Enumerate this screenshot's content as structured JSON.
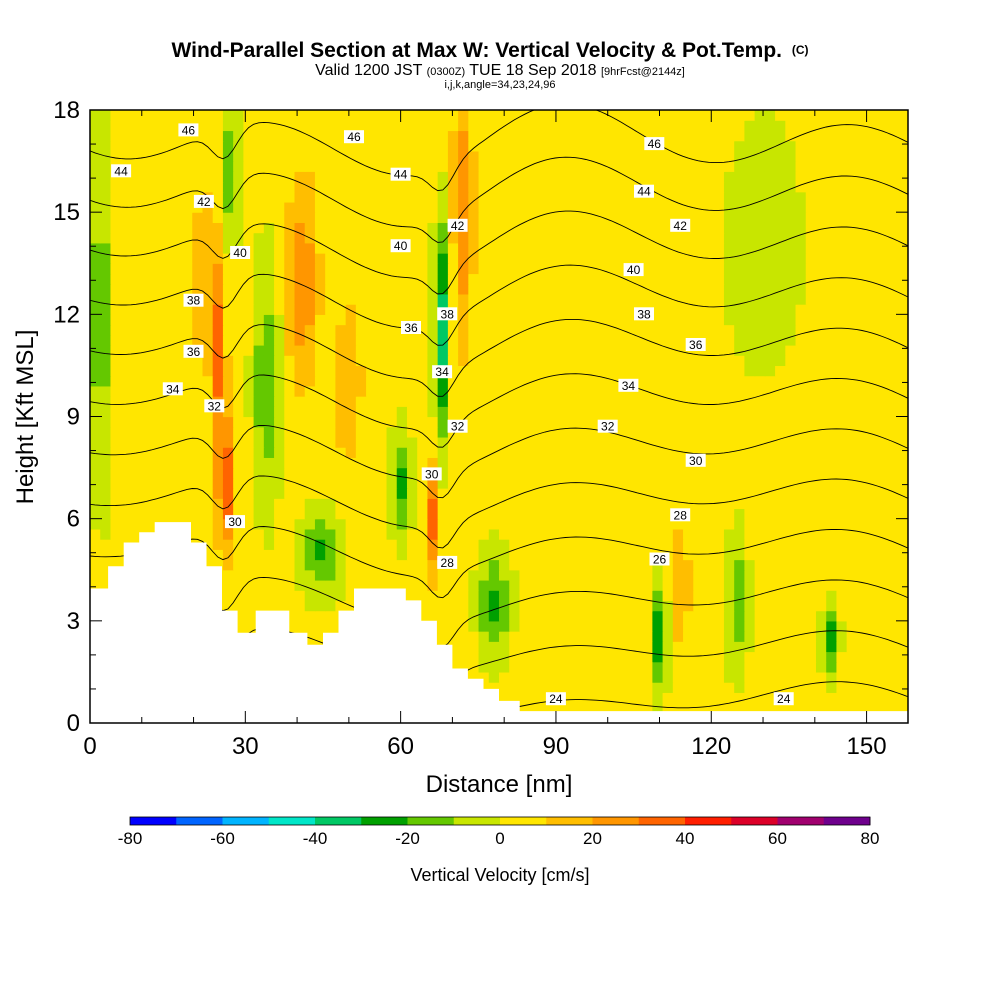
{
  "chart_data": {
    "type": "heatmap",
    "title": "Wind-Parallel Section at Max W: Vertical Velocity & Pot.Temp.",
    "title_suffix": "(C)",
    "subtitle_valid": "Valid 1200 JST",
    "subtitle_zulu": "(0300Z)",
    "subtitle_date": "TUE 18 Sep 2018",
    "subtitle_fcst": "[9hrFcst@2144z]",
    "subtitle_params": "i,j,k,angle=34,23,24,96",
    "xlabel": "Distance [nm]",
    "ylabel": "Height [Kft MSL]",
    "xlim": [
      0,
      158
    ],
    "ylim": [
      0,
      18
    ],
    "x_ticks": [
      "0",
      "30",
      "60",
      "90",
      "120",
      "150"
    ],
    "x_tick_values": [
      0,
      30,
      60,
      90,
      120,
      150
    ],
    "y_ticks": [
      "0",
      "3",
      "6",
      "9",
      "12",
      "15",
      "18"
    ],
    "y_tick_values": [
      0,
      3,
      6,
      9,
      12,
      15,
      18
    ],
    "colorbar": {
      "label": "Vertical Velocity [cm/s]",
      "range": [
        -80,
        80
      ],
      "step": 10,
      "tick_labels": [
        "-80",
        "-60",
        "-40",
        "-20",
        "0",
        "20",
        "40",
        "60",
        "80"
      ],
      "tick_values": [
        -80,
        -60,
        -40,
        -20,
        0,
        20,
        40,
        60,
        80
      ],
      "colors": [
        "#0000ff",
        "#0064ff",
        "#00b4ff",
        "#00e6c8",
        "#00c864",
        "#00a000",
        "#64c800",
        "#c8e600",
        "#ffe600",
        "#ffbe00",
        "#ff9600",
        "#ff6400",
        "#ff1e00",
        "#dc0028",
        "#a0006e",
        "#6e008c"
      ]
    },
    "velocity_features": [
      {
        "x": 2,
        "y": 12,
        "sx": 2,
        "sy": 5,
        "w": -20
      },
      {
        "x": 22,
        "y": 13,
        "sx": 2.5,
        "sy": 3,
        "w": 15
      },
      {
        "x": 26,
        "y": 7,
        "sx": 1.2,
        "sy": 2,
        "w": 45
      },
      {
        "x": 25,
        "y": 11,
        "sx": 1.3,
        "sy": 3,
        "w": 30
      },
      {
        "x": 27,
        "y": 16,
        "sx": 2,
        "sy": 2,
        "w": -20
      },
      {
        "x": 34,
        "y": 10,
        "sx": 2.5,
        "sy": 3.5,
        "w": -20
      },
      {
        "x": 41,
        "y": 13,
        "sx": 3,
        "sy": 3,
        "w": 25
      },
      {
        "x": 45,
        "y": 5,
        "sx": 4,
        "sy": 1.2,
        "w": -25
      },
      {
        "x": 50,
        "y": 10,
        "sx": 4,
        "sy": 4,
        "w": 10
      },
      {
        "x": 60,
        "y": 7,
        "sx": 2,
        "sy": 1.5,
        "w": -25
      },
      {
        "x": 66,
        "y": 6,
        "sx": 1.2,
        "sy": 1.8,
        "w": 30
      },
      {
        "x": 68,
        "y": 11.5,
        "sx": 1.5,
        "sy": 3,
        "w": -40
      },
      {
        "x": 72,
        "y": 15,
        "sx": 2,
        "sy": 4,
        "w": 25
      },
      {
        "x": 78,
        "y": 3.5,
        "sx": 3,
        "sy": 1.5,
        "w": -25
      },
      {
        "x": 90,
        "y": 14,
        "sx": 6,
        "sy": 3,
        "w": 5
      },
      {
        "x": 110,
        "y": 2.5,
        "sx": 1.5,
        "sy": 1.5,
        "w": -30
      },
      {
        "x": 114,
        "y": 4,
        "sx": 2,
        "sy": 2,
        "w": 15
      },
      {
        "x": 125,
        "y": 3.5,
        "sx": 2,
        "sy": 2,
        "w": -20
      },
      {
        "x": 143,
        "y": 2.5,
        "sx": 1.5,
        "sy": 1,
        "w": -30
      },
      {
        "x": 130,
        "y": 14,
        "sx": 8,
        "sy": 4,
        "w": -8
      },
      {
        "x": 150,
        "y": 12,
        "sx": 5,
        "sy": 4,
        "w": 6
      }
    ],
    "potential_temperature": {
      "levels_c": [
        24,
        26,
        28,
        30,
        32,
        34,
        36,
        38,
        40,
        42,
        44,
        46
      ],
      "contour_labels": [
        {
          "text": "46",
          "x": 19,
          "y": 17.4
        },
        {
          "text": "46",
          "x": 51,
          "y": 17.2
        },
        {
          "text": "46",
          "x": 109,
          "y": 17.0
        },
        {
          "text": "44",
          "x": 6,
          "y": 16.2
        },
        {
          "text": "44",
          "x": 60,
          "y": 16.1
        },
        {
          "text": "44",
          "x": 107,
          "y": 15.6
        },
        {
          "text": "42",
          "x": 22,
          "y": 15.3
        },
        {
          "text": "42",
          "x": 71,
          "y": 14.6
        },
        {
          "text": "42",
          "x": 114,
          "y": 14.6
        },
        {
          "text": "40",
          "x": 29,
          "y": 13.8
        },
        {
          "text": "40",
          "x": 60,
          "y": 14.0
        },
        {
          "text": "40",
          "x": 105,
          "y": 13.3
        },
        {
          "text": "38",
          "x": 20,
          "y": 12.4
        },
        {
          "text": "38",
          "x": 69,
          "y": 12.0
        },
        {
          "text": "38",
          "x": 107,
          "y": 12.0
        },
        {
          "text": "36",
          "x": 20,
          "y": 10.9
        },
        {
          "text": "36",
          "x": 62,
          "y": 11.6
        },
        {
          "text": "36",
          "x": 117,
          "y": 11.1
        },
        {
          "text": "34",
          "x": 16,
          "y": 9.8
        },
        {
          "text": "34",
          "x": 68,
          "y": 10.3
        },
        {
          "text": "34",
          "x": 104,
          "y": 9.9
        },
        {
          "text": "32",
          "x": 24,
          "y": 9.3
        },
        {
          "text": "32",
          "x": 71,
          "y": 8.7
        },
        {
          "text": "32",
          "x": 100,
          "y": 8.7
        },
        {
          "text": "30",
          "x": 28,
          "y": 5.9
        },
        {
          "text": "30",
          "x": 66,
          "y": 7.3
        },
        {
          "text": "30",
          "x": 117,
          "y": 7.7
        },
        {
          "text": "28",
          "x": 69,
          "y": 4.7
        },
        {
          "text": "28",
          "x": 114,
          "y": 6.1
        },
        {
          "text": "26",
          "x": 110,
          "y": 4.8
        },
        {
          "text": "24",
          "x": 134,
          "y": 0.7
        },
        {
          "text": "24",
          "x": 90,
          "y": 0.7
        }
      ]
    },
    "terrain_profile": [
      [
        0,
        3.95
      ],
      [
        3.5,
        3.95
      ],
      [
        3.5,
        4.6
      ],
      [
        6.5,
        4.6
      ],
      [
        6.5,
        5.3
      ],
      [
        9.5,
        5.3
      ],
      [
        9.5,
        5.6
      ],
      [
        12.5,
        5.6
      ],
      [
        12.5,
        5.9
      ],
      [
        19.5,
        5.9
      ],
      [
        19.5,
        5.3
      ],
      [
        22.5,
        5.3
      ],
      [
        22.5,
        4.6
      ],
      [
        25.5,
        4.6
      ],
      [
        25.5,
        3.3
      ],
      [
        28.5,
        3.3
      ],
      [
        28.5,
        2.65
      ],
      [
        32,
        2.65
      ],
      [
        32,
        3.3
      ],
      [
        38.5,
        3.3
      ],
      [
        38.5,
        2.65
      ],
      [
        42,
        2.65
      ],
      [
        42,
        2.3
      ],
      [
        45,
        2.3
      ],
      [
        45,
        2.65
      ],
      [
        48,
        2.65
      ],
      [
        48,
        3.3
      ],
      [
        51,
        3.3
      ],
      [
        51,
        3.95
      ],
      [
        61,
        3.95
      ],
      [
        61,
        3.6
      ],
      [
        64,
        3.6
      ],
      [
        64,
        3.0
      ],
      [
        67,
        3.0
      ],
      [
        67,
        2.3
      ],
      [
        70,
        2.3
      ],
      [
        70,
        1.6
      ],
      [
        73,
        1.6
      ],
      [
        73,
        1.3
      ],
      [
        76,
        1.3
      ],
      [
        76,
        1.0
      ],
      [
        79,
        1.0
      ],
      [
        79,
        0.65
      ],
      [
        83,
        0.65
      ],
      [
        83,
        0.35
      ],
      [
        158,
        0.35
      ],
      [
        158,
        0
      ],
      [
        0,
        0
      ]
    ]
  }
}
